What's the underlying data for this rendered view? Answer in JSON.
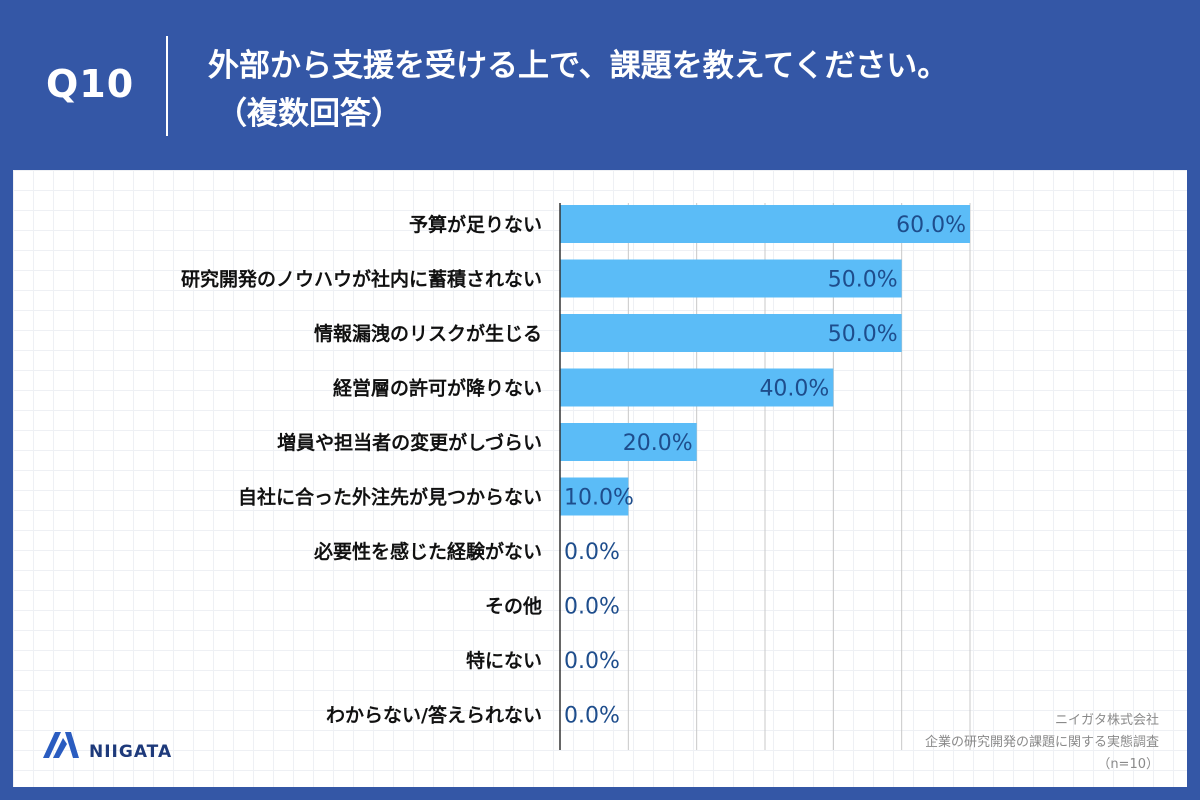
{
  "header": {
    "question_number": "Q10",
    "question_line1": "外部から支援を受ける上で、課題を教えてください。",
    "question_line2": "（複数回答）"
  },
  "brand": {
    "logo_icon": "niigata-logo-icon",
    "name": "NIIGATA"
  },
  "source": {
    "company": "ニイガタ株式会社",
    "survey": "企業の研究開発の課題に関する実態調査",
    "sample": "（n=10）"
  },
  "colors": {
    "header_bg": "#3457a6",
    "bar": "#5bbcf7",
    "value_label": "#1e4d8c",
    "category_label": "#111111",
    "gridline": "#c8c8c8",
    "brand": "#1e3a7b"
  },
  "chart_data": {
    "type": "bar",
    "orientation": "horizontal",
    "categories": [
      "予算が足りない",
      "研究開発のノウハウが社内に蓄積されない",
      "情報漏洩のリスクが生じる",
      "経営層の許可が降りない",
      "増員や担当者の変更がしづらい",
      "自社に合った外注先が見つからない",
      "必要性を感じた経験がない",
      "その他",
      "特にない",
      "わからない/答えられない"
    ],
    "values": [
      60.0,
      50.0,
      50.0,
      40.0,
      20.0,
      10.0,
      0.0,
      0.0,
      0.0,
      0.0
    ],
    "value_labels": [
      "60.0%",
      "50.0%",
      "50.0%",
      "40.0%",
      "20.0%",
      "10.0%",
      "0.0%",
      "0.0%",
      "0.0%",
      "0.0%"
    ],
    "xlim": [
      0,
      60
    ],
    "grid": true,
    "title": "",
    "xlabel": "",
    "ylabel": ""
  }
}
